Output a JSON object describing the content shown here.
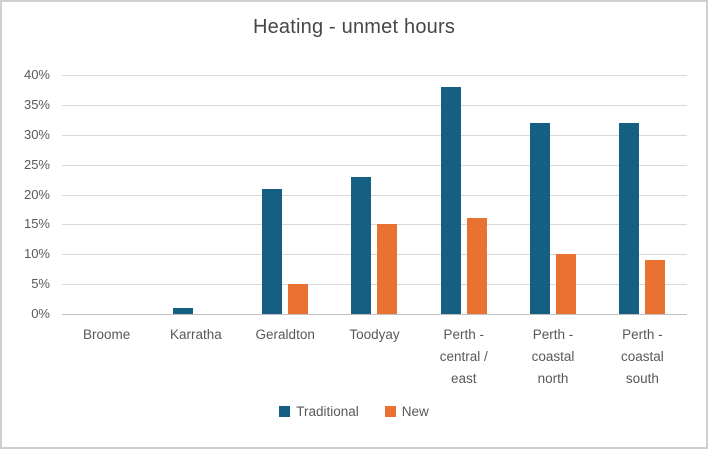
{
  "chart_data": {
    "type": "bar",
    "title": "Heating - unmet hours",
    "categories": [
      [
        "Broome"
      ],
      [
        "Karratha"
      ],
      [
        "Geraldton"
      ],
      [
        "Toodyay"
      ],
      [
        "Perth -",
        "central /",
        "east"
      ],
      [
        "Perth -",
        "coastal",
        "north"
      ],
      [
        "Perth -",
        "coastal",
        "south"
      ]
    ],
    "series": [
      {
        "name": "Traditional",
        "color": "#156082",
        "values": [
          0,
          1,
          21,
          23,
          38,
          32,
          32
        ]
      },
      {
        "name": "New",
        "color": "#E97132",
        "values": [
          0,
          0,
          5,
          15,
          16,
          10,
          9
        ]
      }
    ],
    "xlabel": "",
    "ylabel": "",
    "ylim": [
      0,
      40
    ],
    "y_tick_step": 5,
    "y_tick_labels": [
      "0%",
      "5%",
      "10%",
      "15%",
      "20%",
      "25%",
      "30%",
      "35%",
      "40%"
    ],
    "grid": "horizontal",
    "legend_position": "bottom",
    "colors": {
      "gridline": "#d9d9d9",
      "axis_line": "#bfbfbf",
      "tick_text": "#595959",
      "title_text": "#474747",
      "frame_border": "#d0cece",
      "background": "#ffffff"
    }
  }
}
